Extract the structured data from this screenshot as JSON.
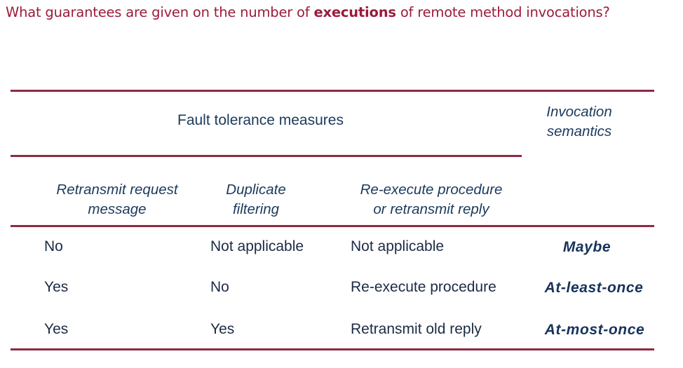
{
  "question": {
    "prefix": "What guarantees are given on the number of ",
    "emphasis": "executions",
    "suffix": " of remote method invocations?"
  },
  "table": {
    "group_header": "Fault tolerance measures",
    "semantics_header": [
      "Invocation",
      "semantics"
    ],
    "columns": [
      [
        "Retransmit request",
        "message"
      ],
      [
        "Duplicate",
        "filtering"
      ],
      [
        "Re-execute procedure",
        "or retransmit reply"
      ]
    ],
    "rows": [
      {
        "retransmit": "No",
        "filtering": "Not applicable",
        "reexecute": "Not applicable",
        "semantics": "Maybe"
      },
      {
        "retransmit": "Yes",
        "filtering": "No",
        "reexecute": "Re-execute procedure",
        "semantics": "At-least-once"
      },
      {
        "retransmit": "Yes",
        "filtering": "Yes",
        "reexecute": "Retransmit old reply",
        "semantics": "At-most-once"
      }
    ]
  },
  "colors": {
    "accent": "#9b1b3a",
    "rule": "#8e2a44",
    "text": "#1c2b44"
  }
}
